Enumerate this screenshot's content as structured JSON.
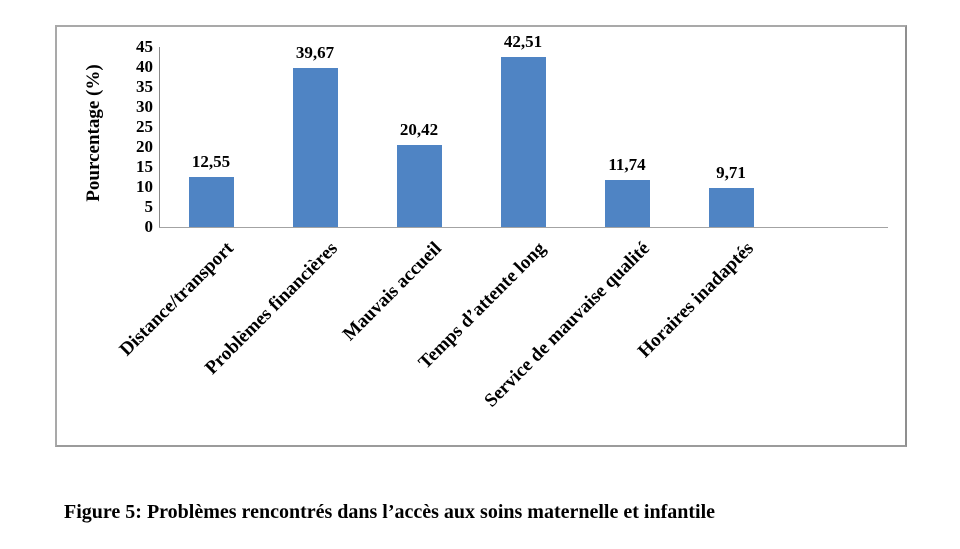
{
  "figure": {
    "caption": "Figure 5: Problèmes rencontrés dans l’accès aux soins maternelle et infantile"
  },
  "chart_data": {
    "type": "bar",
    "title": "",
    "xlabel": "",
    "ylabel": "Pourcentage (%)",
    "ylim": [
      0,
      45
    ],
    "yticks": [
      0,
      5,
      10,
      15,
      20,
      25,
      30,
      35,
      40,
      45
    ],
    "grid": false,
    "legend": false,
    "categories": [
      "Distance/transport",
      "Problèmes financières",
      "Mauvais accueil",
      "Temps d’attente long",
      "Service de mauvaise qualité",
      "Horaires inadaptés"
    ],
    "values": [
      12.55,
      39.67,
      20.42,
      42.51,
      11.74,
      9.71
    ],
    "value_labels": [
      "12,55",
      "39,67",
      "20,42",
      "42,51",
      "11,74",
      "9,71"
    ],
    "bar_color": "#4f84c4",
    "axis_color": "#8a8a8a",
    "frame_color": "#a9a9a9",
    "text_color": "#000000"
  }
}
